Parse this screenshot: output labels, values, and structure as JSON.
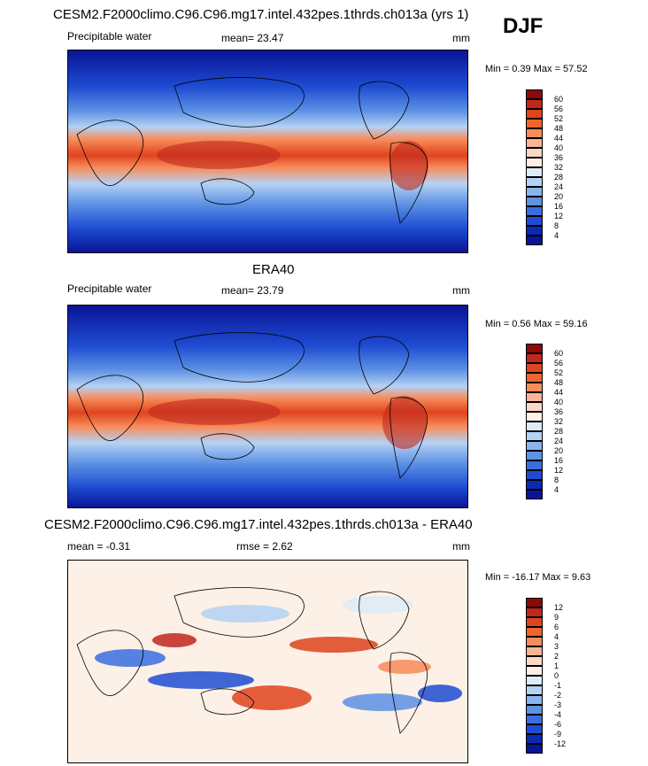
{
  "season": "DJF",
  "panels": [
    {
      "title": "CESM2.F2000climo.C96.C96.mg17.intel.432pes.1thrds.ch013a (yrs 1)",
      "left_label": "Precipitable water",
      "center_label": "mean=  23.47",
      "units": "mm",
      "minmax": "Min =   0.39 Max =  57.52",
      "colorbar_labels": [
        "60",
        "56",
        "52",
        "48",
        "44",
        "40",
        "36",
        "32",
        "28",
        "24",
        "20",
        "16",
        "12",
        "8",
        "4"
      ],
      "colors": [
        "#8c0a0a",
        "#c0281e",
        "#e0441e",
        "#f0642e",
        "#f88c5a",
        "#fab496",
        "#fcd8c6",
        "#fdf0e6",
        "#deecf8",
        "#b4d2f4",
        "#8ab4ee",
        "#5e92e4",
        "#3a6ee0",
        "#1e4cd2",
        "#0a2ab4",
        "#0a1496"
      ]
    },
    {
      "title": "ERA40",
      "left_label": "Precipitable water",
      "center_label": "mean=  23.79",
      "units": "mm",
      "minmax": "Min =   0.56 Max =  59.16",
      "colorbar_labels": [
        "60",
        "56",
        "52",
        "48",
        "44",
        "40",
        "36",
        "32",
        "28",
        "24",
        "20",
        "16",
        "12",
        "8",
        "4"
      ],
      "colors": [
        "#8c0a0a",
        "#c0281e",
        "#e0441e",
        "#f0642e",
        "#f88c5a",
        "#fab496",
        "#fcd8c6",
        "#fdf0e6",
        "#deecf8",
        "#b4d2f4",
        "#8ab4ee",
        "#5e92e4",
        "#3a6ee0",
        "#1e4cd2",
        "#0a2ab4",
        "#0a1496"
      ]
    },
    {
      "title": "CESM2.F2000climo.C96.C96.mg17.intel.432pes.1thrds.ch013a - ERA40",
      "left_label": "mean =  -0.31",
      "center_label": "rmse =   2.62",
      "units": "mm",
      "minmax": "Min = -16.17 Max =   9.63",
      "colorbar_labels": [
        "12",
        "9",
        "6",
        "4",
        "3",
        "2",
        "1",
        "0",
        "-1",
        "-2",
        "-3",
        "-4",
        "-6",
        "-9",
        "-12"
      ],
      "colors": [
        "#8c0a0a",
        "#c0281e",
        "#e0441e",
        "#f0642e",
        "#f88c5a",
        "#fab496",
        "#fcd8c6",
        "#fdf0e6",
        "#deecf8",
        "#b4d2f4",
        "#8ab4ee",
        "#5e92e4",
        "#3a6ee0",
        "#1e4cd2",
        "#0a2ab4",
        "#0a1496"
      ]
    }
  ],
  "chart_data": [
    {
      "type": "heatmap",
      "title": "CESM2.F2000climo.C96.C96.mg17.intel.432pes.1thrds.ch013a (yrs 1)",
      "variable": "Precipitable water",
      "units": "mm",
      "mean": 23.47,
      "min": 0.39,
      "max": 57.52,
      "contour_levels": [
        4,
        8,
        12,
        16,
        20,
        24,
        28,
        32,
        36,
        40,
        44,
        48,
        52,
        56,
        60
      ]
    },
    {
      "type": "heatmap",
      "title": "ERA40",
      "variable": "Precipitable water",
      "units": "mm",
      "mean": 23.79,
      "min": 0.56,
      "max": 59.16,
      "contour_levels": [
        4,
        8,
        12,
        16,
        20,
        24,
        28,
        32,
        36,
        40,
        44,
        48,
        52,
        56,
        60
      ]
    },
    {
      "type": "heatmap",
      "title": "CESM2.F2000climo.C96.C96.mg17.intel.432pes.1thrds.ch013a - ERA40",
      "units": "mm",
      "mean": -0.31,
      "rmse": 2.62,
      "min": -16.17,
      "max": 9.63,
      "contour_levels": [
        -12,
        -9,
        -6,
        -4,
        -3,
        -2,
        -1,
        0,
        1,
        2,
        3,
        4,
        6,
        9,
        12
      ]
    }
  ]
}
